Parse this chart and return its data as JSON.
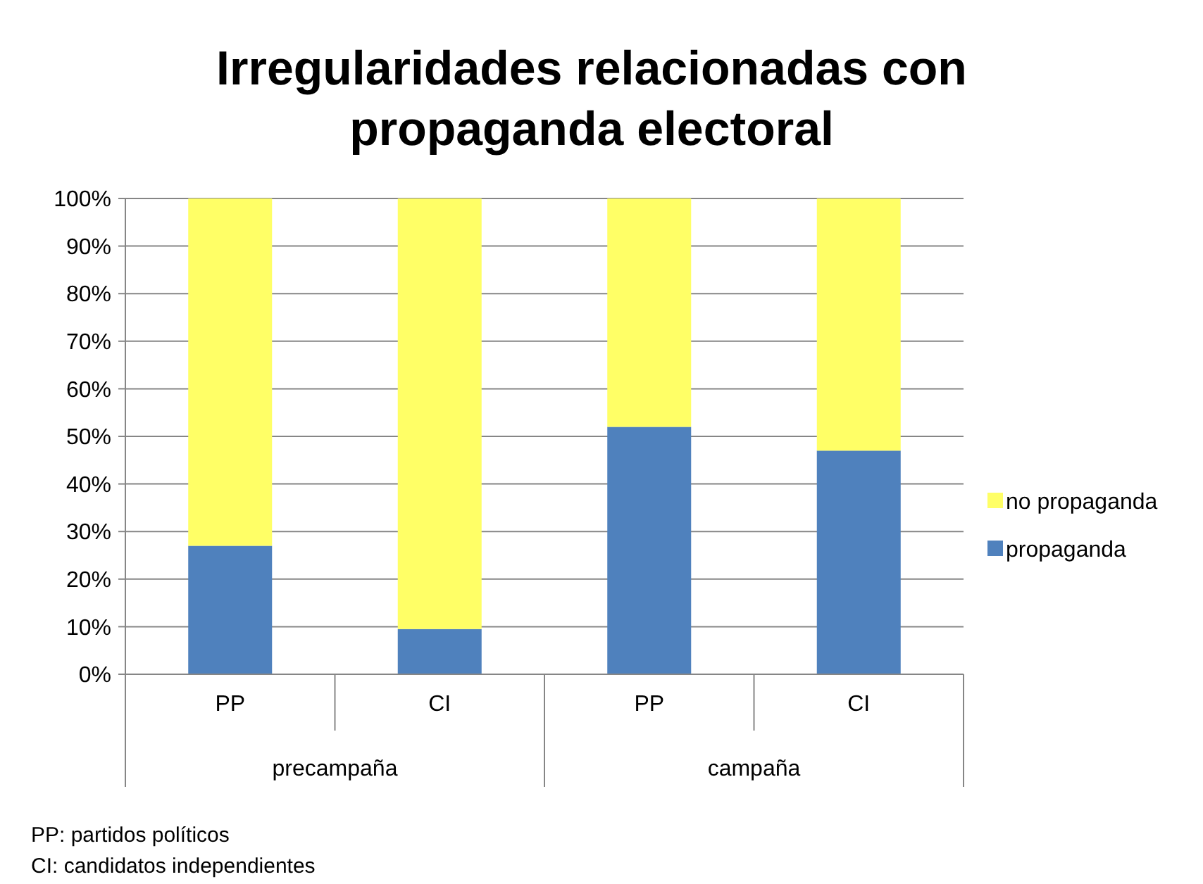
{
  "chart_data": {
    "type": "bar",
    "title": "Irregularidades relacionadas con propaganda electoral",
    "categories": [
      "PP",
      "CI",
      "PP",
      "CI"
    ],
    "stacked": true,
    "series": [
      {
        "name": "propaganda",
        "color": "#4f81bd",
        "values": [
          27,
          9.5,
          52,
          47
        ]
      },
      {
        "name": "no propaganda",
        "color": "#ffff66",
        "values": [
          73,
          90.5,
          48,
          53
        ]
      }
    ],
    "ylim": [
      0,
      100
    ],
    "yticks": [
      {
        "value": 0,
        "label": "0%"
      },
      {
        "value": 10,
        "label": "10%"
      },
      {
        "value": 20,
        "label": "20%"
      },
      {
        "value": 30,
        "label": "30%"
      },
      {
        "value": 40,
        "label": "40%"
      },
      {
        "value": 50,
        "label": "50%"
      },
      {
        "value": 60,
        "label": "60%"
      },
      {
        "value": 70,
        "label": "70%"
      },
      {
        "value": 80,
        "label": "80%"
      },
      {
        "value": 90,
        "label": "90%"
      },
      {
        "value": 100,
        "label": "100%"
      }
    ],
    "grid": "y",
    "legend": "right",
    "annotations": [
      "precampaña",
      "campaña",
      "PP: partidos políticos",
      "CI: candidatos independientes"
    ]
  }
}
